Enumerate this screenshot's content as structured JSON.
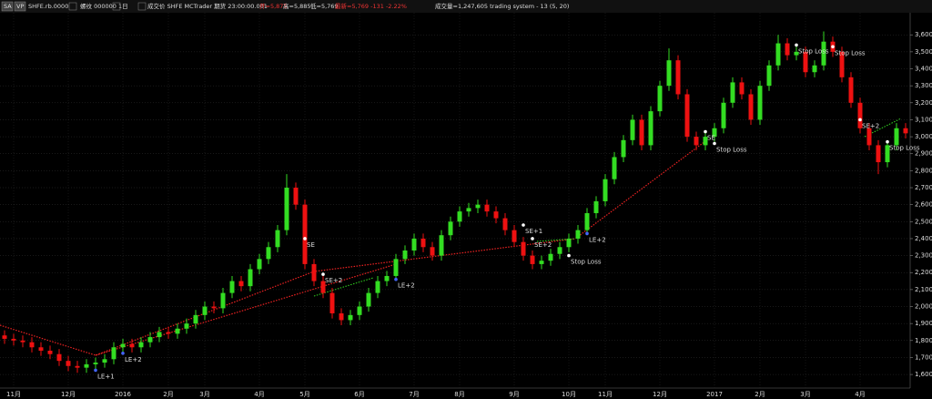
{
  "header": {
    "sym_a": "SA",
    "sym_b": "VP",
    "symbol": "SHFE.rb.0000",
    "desc": "螺纹 000000 1日",
    "source": "成交价 SHFE MCTrader 期货 23:00:00.001",
    "open": "开=5,875",
    "high": "高=5,885",
    "low": "低=5,769",
    "last": "最新=5,769 -131 -2.22%",
    "volume": "成交量=1,247,605 trading system - 13 (5, 20)"
  },
  "chart_data": {
    "type": "candlestick",
    "categories": [
      null,
      "11月",
      null,
      null,
      null,
      null,
      null,
      "12月",
      null,
      null,
      null,
      null,
      null,
      "2016",
      null,
      null,
      null,
      null,
      "2月",
      null,
      null,
      null,
      "3月",
      null,
      null,
      null,
      null,
      null,
      "4月",
      null,
      null,
      null,
      null,
      "5月",
      null,
      null,
      null,
      null,
      null,
      "6月",
      null,
      null,
      null,
      null,
      null,
      "7月",
      null,
      null,
      null,
      null,
      "8月",
      null,
      null,
      null,
      null,
      null,
      "9月",
      null,
      null,
      null,
      null,
      null,
      "10月",
      null,
      null,
      null,
      "11月",
      null,
      null,
      null,
      null,
      null,
      "12月",
      null,
      null,
      null,
      null,
      null,
      "2017",
      null,
      null,
      null,
      null,
      "2月",
      null,
      null,
      null,
      null,
      "3月",
      null,
      null,
      null,
      null,
      null,
      "4月",
      null,
      null,
      null,
      null,
      null
    ],
    "open": [
      1830,
      1810,
      1800,
      1790,
      1760,
      1740,
      1720,
      1680,
      1650,
      1640,
      1660,
      1670,
      1690,
      1760,
      1780,
      1760,
      1790,
      1820,
      1850,
      1840,
      1870,
      1900,
      1950,
      2000,
      1990,
      2080,
      2150,
      2120,
      2220,
      2280,
      2350,
      2450,
      2700,
      2600,
      2250,
      2150,
      2080,
      1960,
      1920,
      1950,
      2000,
      2080,
      2150,
      2180,
      2280,
      2330,
      2400,
      2350,
      2300,
      2420,
      2500,
      2560,
      2580,
      2600,
      2560,
      2520,
      2450,
      2380,
      2300,
      2250,
      2270,
      2310,
      2350,
      2400,
      2450,
      2550,
      2620,
      2750,
      2880,
      2980,
      3100,
      2950,
      3150,
      3300,
      3450,
      3250,
      3000,
      2950,
      3000,
      3050,
      3200,
      3320,
      3250,
      3100,
      3300,
      3420,
      3550,
      3480,
      3500,
      3380,
      3420,
      3560,
      3500,
      3350,
      3200,
      3050,
      2950,
      2850,
      2950,
      3050
    ],
    "high": [
      1860,
      1840,
      1830,
      1820,
      1790,
      1770,
      1750,
      1710,
      1680,
      1690,
      1700,
      1720,
      1790,
      1810,
      1810,
      1820,
      1850,
      1880,
      1880,
      1900,
      1930,
      1980,
      2030,
      2030,
      2110,
      2180,
      2180,
      2250,
      2310,
      2380,
      2480,
      2780,
      2730,
      2630,
      2280,
      2180,
      2110,
      1990,
      1980,
      2030,
      2110,
      2180,
      2210,
      2310,
      2360,
      2430,
      2430,
      2380,
      2450,
      2530,
      2590,
      2610,
      2630,
      2630,
      2590,
      2550,
      2480,
      2410,
      2330,
      2300,
      2340,
      2380,
      2430,
      2480,
      2580,
      2650,
      2780,
      2910,
      3010,
      3130,
      3130,
      3180,
      3330,
      3520,
      3480,
      3280,
      3030,
      3030,
      3080,
      3230,
      3350,
      3350,
      3280,
      3330,
      3450,
      3600,
      3580,
      3530,
      3530,
      3450,
      3620,
      3590,
      3530,
      3380,
      3230,
      3080,
      2980,
      2980,
      3080,
      3080
    ],
    "low": [
      1780,
      1770,
      1760,
      1730,
      1710,
      1690,
      1650,
      1620,
      1610,
      1610,
      1630,
      1640,
      1660,
      1730,
      1730,
      1730,
      1760,
      1790,
      1810,
      1810,
      1840,
      1870,
      1920,
      1960,
      1960,
      2050,
      2090,
      2090,
      2190,
      2250,
      2320,
      2420,
      2570,
      2220,
      2120,
      2050,
      1930,
      1890,
      1890,
      1920,
      1970,
      2050,
      2120,
      2150,
      2250,
      2300,
      2320,
      2270,
      2270,
      2390,
      2470,
      2530,
      2550,
      2530,
      2490,
      2420,
      2350,
      2270,
      2220,
      2220,
      2240,
      2280,
      2320,
      2370,
      2420,
      2520,
      2590,
      2720,
      2850,
      2950,
      2920,
      2920,
      3120,
      3270,
      3220,
      2970,
      2920,
      2920,
      2970,
      3020,
      3170,
      3220,
      3070,
      3070,
      3270,
      3390,
      3450,
      3450,
      3350,
      3350,
      3390,
      3470,
      3320,
      3170,
      3020,
      2920,
      2780,
      2820,
      2920,
      2990
    ],
    "close": [
      1810,
      1800,
      1790,
      1760,
      1740,
      1720,
      1680,
      1650,
      1640,
      1660,
      1670,
      1690,
      1760,
      1780,
      1760,
      1790,
      1820,
      1850,
      1840,
      1870,
      1900,
      1950,
      2000,
      1990,
      2080,
      2150,
      2120,
      2220,
      2280,
      2350,
      2450,
      2700,
      2600,
      2250,
      2150,
      2080,
      1960,
      1920,
      1950,
      2000,
      2080,
      2150,
      2180,
      2280,
      2330,
      2400,
      2350,
      2300,
      2420,
      2500,
      2560,
      2580,
      2600,
      2560,
      2520,
      2450,
      2380,
      2300,
      2250,
      2270,
      2310,
      2350,
      2400,
      2450,
      2550,
      2620,
      2750,
      2880,
      2980,
      3100,
      2950,
      3150,
      3300,
      3450,
      3250,
      3000,
      2950,
      3000,
      3050,
      3200,
      3320,
      3250,
      3100,
      3300,
      3420,
      3550,
      3480,
      3500,
      3380,
      3420,
      3560,
      3500,
      3350,
      3200,
      3050,
      2950,
      2850,
      2950,
      3050,
      3020
    ],
    "up_color": "#33dd22",
    "down_color": "#ee1111",
    "ylim": [
      1520,
      3730
    ],
    "yticks": [
      {
        "value": 1600,
        "label": "1,600"
      },
      {
        "value": 1700,
        "label": "1,700"
      },
      {
        "value": 1800,
        "label": "1,800"
      },
      {
        "value": 1900,
        "label": "1,900"
      },
      {
        "value": 2000,
        "label": "2,000"
      },
      {
        "value": 2100,
        "label": "2,100"
      },
      {
        "value": 2200,
        "label": "2,200"
      },
      {
        "value": 2300,
        "label": "2,300"
      },
      {
        "value": 2400,
        "label": "2,400"
      },
      {
        "value": 2500,
        "label": "2,500"
      },
      {
        "value": 2600,
        "label": "2,600"
      },
      {
        "value": 2700,
        "label": "2,700"
      },
      {
        "value": 2800,
        "label": "2,800"
      },
      {
        "value": 2900,
        "label": "2,900"
      },
      {
        "value": 3000,
        "label": "3,000"
      },
      {
        "value": 3100,
        "label": "3,100"
      },
      {
        "value": 3200,
        "label": "3,200"
      },
      {
        "value": 3300,
        "label": "3,300"
      },
      {
        "value": 3400,
        "label": "3,400"
      },
      {
        "value": 3500,
        "label": "3,500"
      },
      {
        "value": 3600,
        "label": "3,600"
      }
    ],
    "grid": true,
    "annotations": [
      {
        "text": "LE+1",
        "index": 10,
        "price": 1625
      },
      {
        "text": "LE+2",
        "index": 13,
        "price": 1725
      },
      {
        "text": "SE",
        "index": 33,
        "price": 2400
      },
      {
        "text": "SE+2",
        "index": 35,
        "price": 2190
      },
      {
        "text": "LE+2",
        "index": 43,
        "price": 2160
      },
      {
        "text": "SE+1",
        "index": 57,
        "price": 2480
      },
      {
        "text": "SE+2",
        "index": 58,
        "price": 2400
      },
      {
        "text": "Stop Loss",
        "index": 62,
        "price": 2300
      },
      {
        "text": "LE+2",
        "index": 64,
        "price": 2430
      },
      {
        "text": "SE",
        "index": 77,
        "price": 3030
      },
      {
        "text": "Stop Loss",
        "index": 78,
        "price": 2960
      },
      {
        "text": "Stop Loss",
        "index": 87,
        "price": 3540
      },
      {
        "text": "Stop Loss",
        "index": 91,
        "price": 3530
      },
      {
        "text": "SE+2",
        "index": 94,
        "price": 3100
      },
      {
        "text": "Stop Loss",
        "index": 97,
        "price": 2970
      }
    ]
  }
}
